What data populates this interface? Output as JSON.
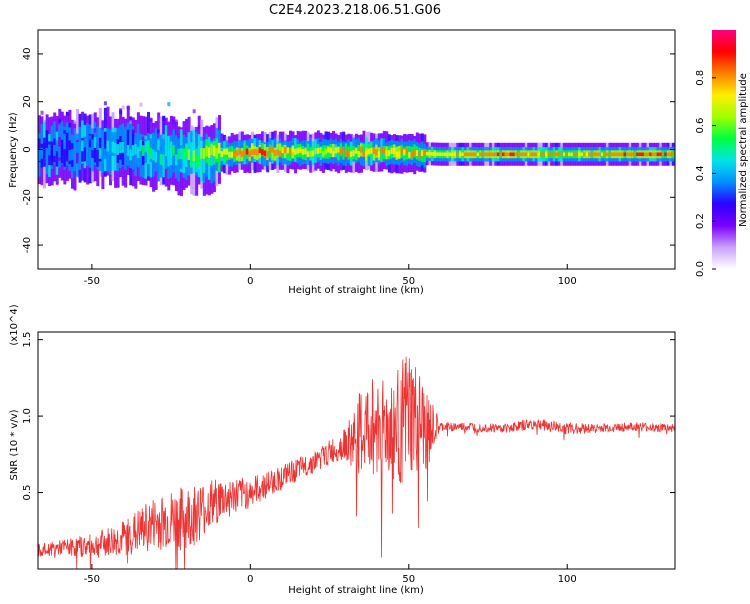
{
  "title": "C2E4.2023.218.06.51.G06",
  "chart_data": [
    {
      "type": "heatmap",
      "xlabel": "Height of straight line (km)",
      "ylabel": "Frequency (Hz)",
      "xlim": [
        -67,
        134
      ],
      "ylim": [
        -50,
        50
      ],
      "x_ticks": [
        -50,
        0,
        50,
        100
      ],
      "y_ticks": [
        40,
        20,
        0,
        -20,
        -40
      ],
      "colorbar": {
        "label": "Normalized spectral amplitude",
        "range": [
          0,
          1
        ],
        "ticks": [
          "0.0",
          "0.2",
          "0.4",
          "0.6",
          "0.8"
        ],
        "colors": [
          "#ffffff",
          "#c9a0ff",
          "#7b00ff",
          "#2b00ff",
          "#0090ff",
          "#00e5e5",
          "#00ff40",
          "#a0ff00",
          "#ffee00",
          "#ff8000",
          "#ff0000",
          "#ff0080"
        ]
      },
      "description_points": [
        {
          "x": -60,
          "freq": 0,
          "amp": 0.35
        },
        {
          "x": -40,
          "freq": 1,
          "amp": 0.45
        },
        {
          "x": -20,
          "freq": -3,
          "amp": 0.55
        },
        {
          "x": 0,
          "freq": -1,
          "amp": 0.85
        },
        {
          "x": 20,
          "freq": -1,
          "amp": 0.7
        },
        {
          "x": 40,
          "freq": -1,
          "amp": 0.8
        },
        {
          "x": 60,
          "freq": -2,
          "amp": 0.75
        },
        {
          "x": 80,
          "freq": -2,
          "amp": 0.85
        },
        {
          "x": 100,
          "freq": -2,
          "amp": 0.75
        },
        {
          "x": 120,
          "freq": -2,
          "amp": 0.85
        }
      ]
    },
    {
      "type": "line",
      "xlabel": "Height of straight line (km)",
      "ylabel": "SNR (10 * v/v)",
      "y_multiplier": "(x10^4)",
      "xlim": [
        -67,
        134
      ],
      "ylim": [
        0,
        1.55
      ],
      "x_ticks": [
        -50,
        0,
        50,
        100
      ],
      "y_ticks": [
        "1.5",
        "1.0",
        "0.5"
      ],
      "y_tick_values": [
        1.5,
        1.0,
        0.5
      ],
      "line_color": "#ee3333",
      "x": [
        -67,
        -60,
        -50,
        -40,
        -30,
        -20,
        -10,
        0,
        10,
        20,
        30,
        35,
        40,
        45,
        50,
        55,
        60,
        70,
        80,
        90,
        100,
        110,
        120,
        134
      ],
      "y": [
        0.12,
        0.14,
        0.15,
        0.2,
        0.3,
        0.33,
        0.45,
        0.5,
        0.6,
        0.7,
        0.82,
        0.88,
        0.95,
        0.9,
        1.0,
        0.9,
        0.93,
        0.93,
        0.92,
        0.95,
        0.92,
        0.92,
        0.93,
        0.92
      ],
      "noise": [
        0.04,
        0.05,
        0.08,
        0.12,
        0.18,
        0.22,
        0.15,
        0.1,
        0.08,
        0.07,
        0.1,
        0.3,
        0.35,
        0.35,
        0.45,
        0.3,
        0.03,
        0.03,
        0.03,
        0.04,
        0.04,
        0.03,
        0.03,
        0.03
      ]
    }
  ]
}
